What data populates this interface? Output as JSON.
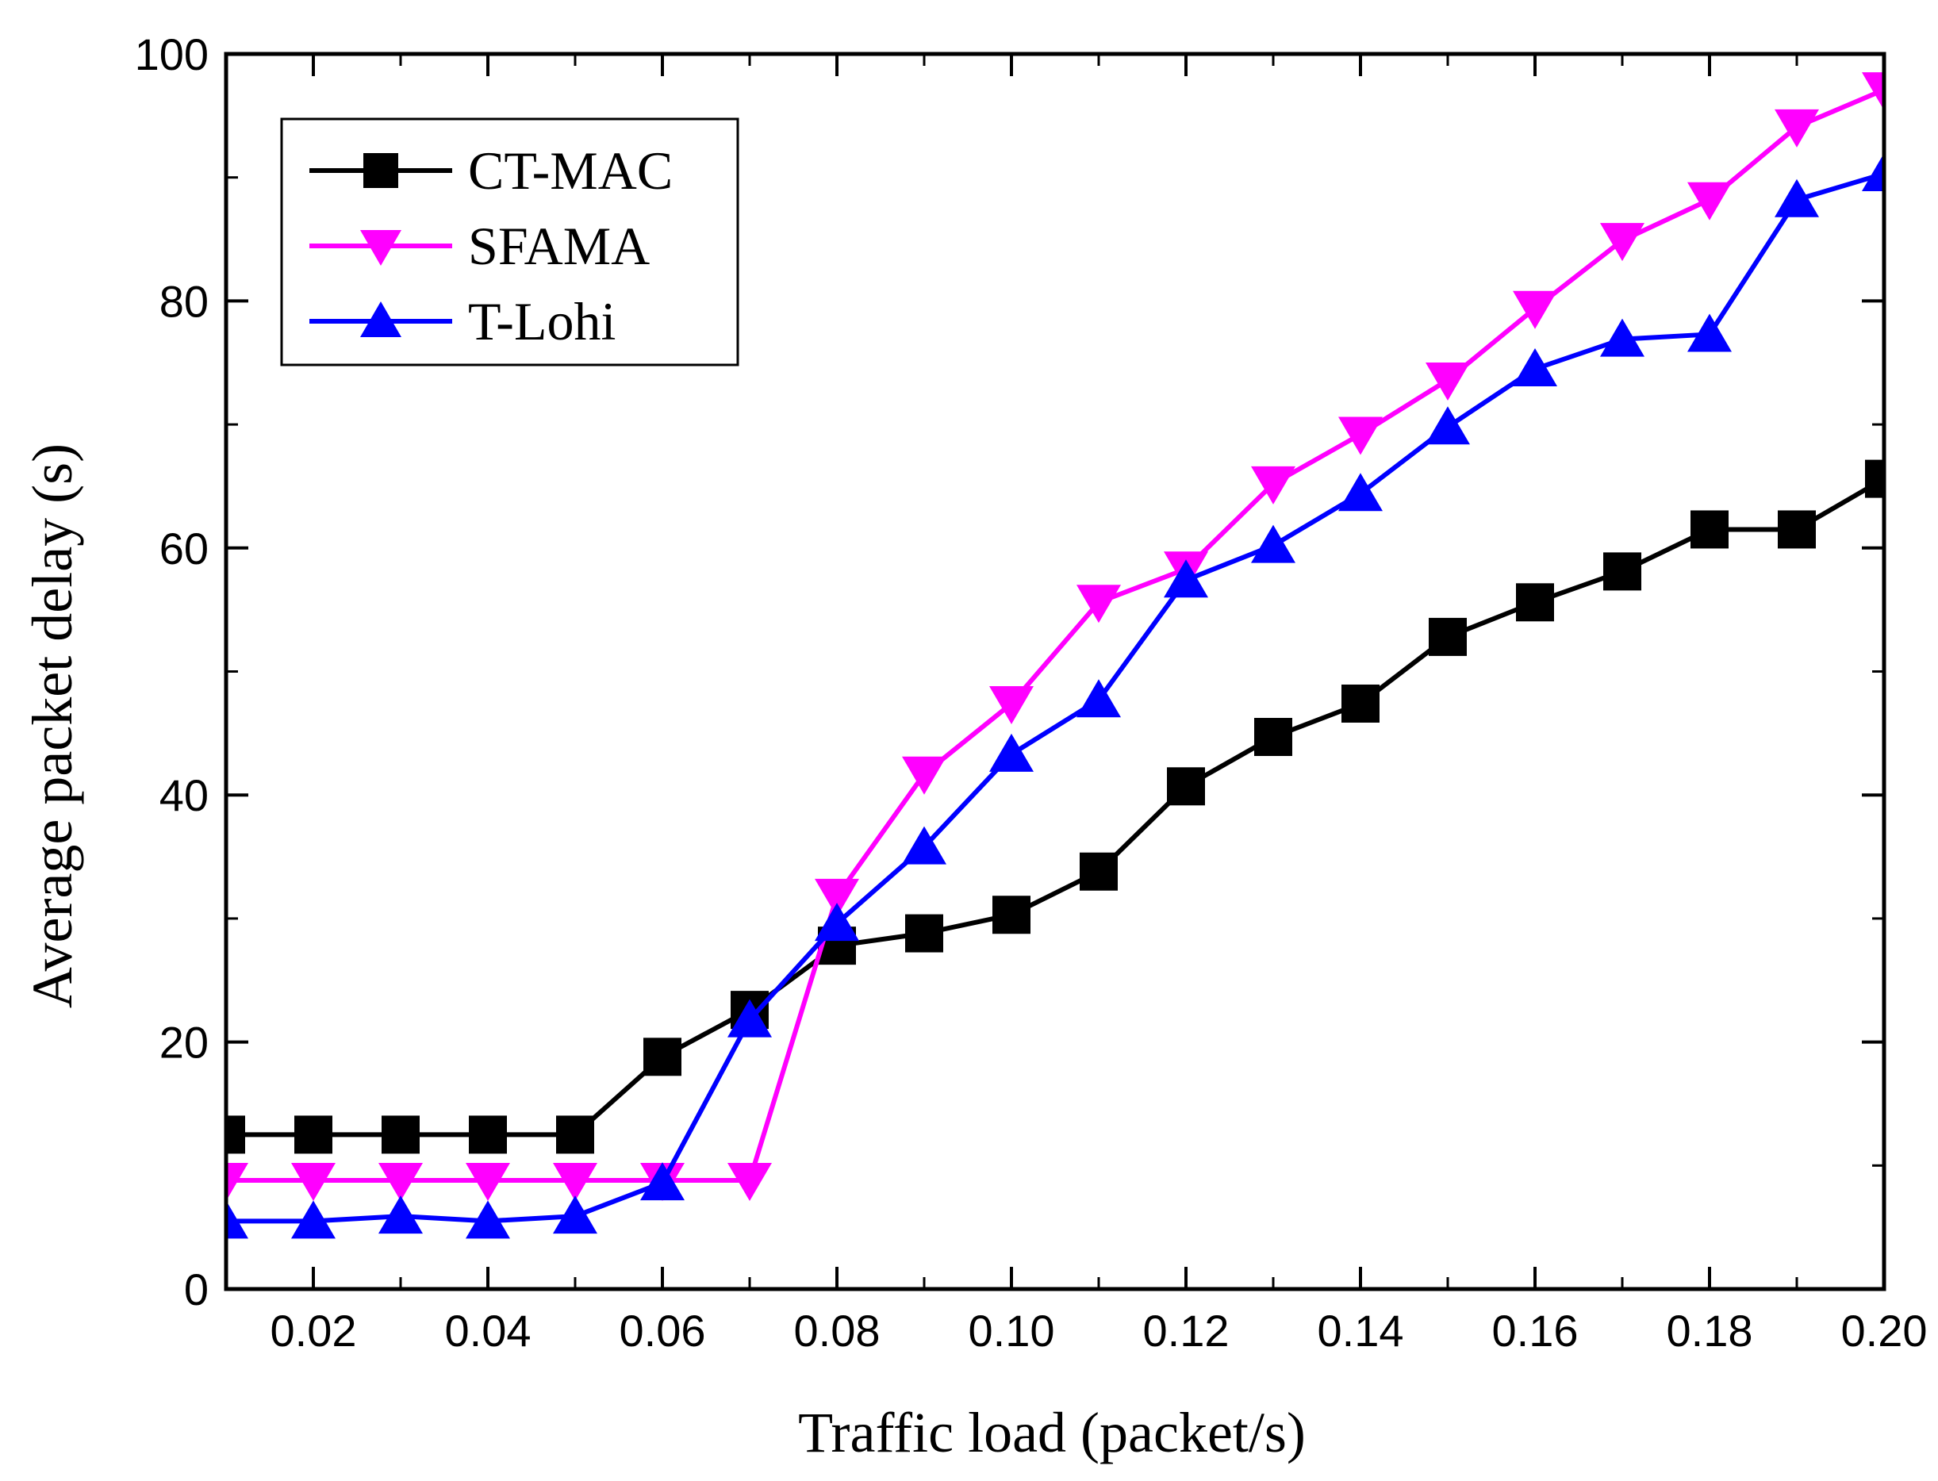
{
  "chart_data": {
    "type": "line",
    "xlabel": "Traffic load (packet/s)",
    "ylabel": "Average packet delay (s)",
    "xlim": [
      0.01,
      0.2
    ],
    "ylim": [
      0,
      100
    ],
    "x_ticks": [
      "0.02",
      "0.04",
      "0.06",
      "0.08",
      "0.10",
      "0.12",
      "0.14",
      "0.16",
      "0.18",
      "0.20"
    ],
    "y_ticks": [
      "0",
      "20",
      "40",
      "60",
      "80",
      "100"
    ],
    "grid": false,
    "legend_position": "top-left",
    "x": [
      0.01,
      0.02,
      0.03,
      0.04,
      0.05,
      0.06,
      0.07,
      0.08,
      0.09,
      0.1,
      0.11,
      0.12,
      0.13,
      0.14,
      0.15,
      0.16,
      0.17,
      0.18,
      0.19,
      0.2
    ],
    "series": [
      {
        "name": "CT-MAC",
        "color": "#000000",
        "marker": "square",
        "values": [
          12.5,
          12.5,
          12.5,
          12.5,
          12.5,
          18.8,
          22.6,
          27.8,
          28.8,
          30.3,
          33.8,
          40.7,
          44.7,
          47.4,
          52.8,
          55.6,
          58.1,
          61.5,
          61.5,
          65.6
        ]
      },
      {
        "name": "SFAMA",
        "color": "#ff00ff",
        "marker": "triangle-down",
        "values": [
          8.8,
          8.8,
          8.8,
          8.8,
          8.8,
          8.8,
          8.8,
          31.8,
          41.7,
          47.4,
          55.6,
          58.3,
          65.2,
          69.2,
          73.6,
          79.4,
          84.9,
          88.2,
          94.1,
          97.1
        ]
      },
      {
        "name": "T-Lohi",
        "color": "#0000ff",
        "marker": "triangle-up",
        "values": [
          5.5,
          5.5,
          5.9,
          5.5,
          5.9,
          8.6,
          21.8,
          29.6,
          35.8,
          43.3,
          47.7,
          57.4,
          60.2,
          64.4,
          69.8,
          74.5,
          76.9,
          77.3,
          88.2,
          90.3
        ]
      }
    ]
  }
}
